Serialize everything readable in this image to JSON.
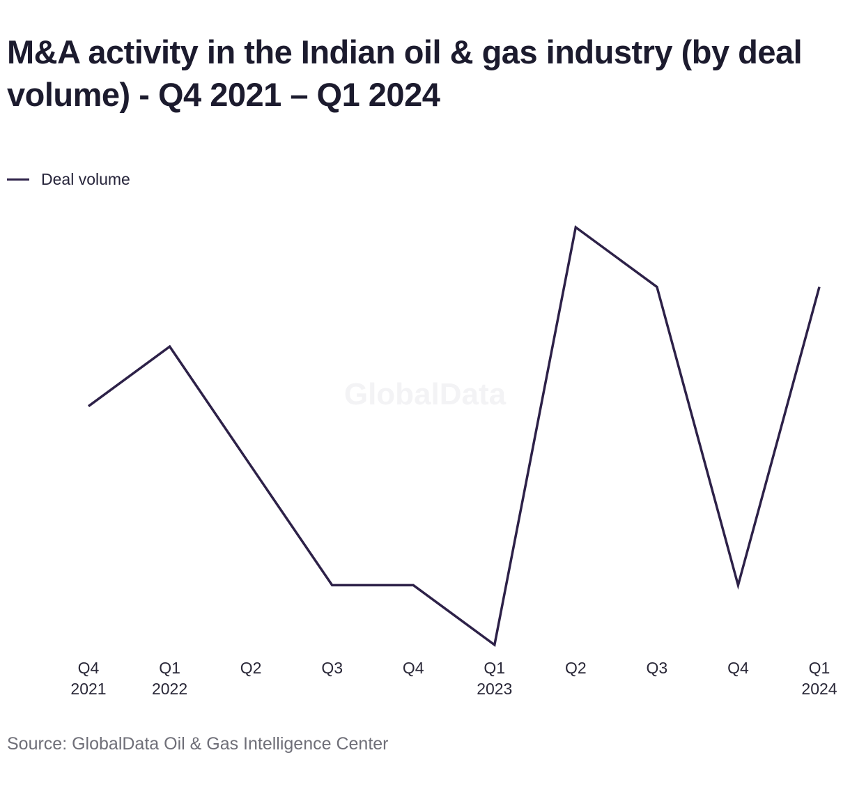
{
  "title": "M&A activity in the Indian oil & gas industry (by deal volume) - Q4 2021 – Q1 2024",
  "watermark": "GlobalData",
  "source": "Source: GlobalData Oil & Gas Intelligence Center",
  "colors": {
    "line": "#2d2148",
    "text": "#1c1b2e",
    "source": "#6f6f78"
  },
  "chart_data": {
    "type": "line",
    "title": "M&A activity in the Indian oil & gas industry (by deal volume) - Q4 2021 – Q1 2024",
    "xlabel": "",
    "ylabel": "",
    "grid": false,
    "y_axis_labels_shown": false,
    "legend_placement": "top-left",
    "categories": [
      [
        "Q4",
        "2021"
      ],
      [
        "Q1",
        "2022"
      ],
      [
        "Q2"
      ],
      [
        "Q3"
      ],
      [
        "Q4"
      ],
      [
        "Q1",
        "2023"
      ],
      [
        "Q2"
      ],
      [
        "Q3"
      ],
      [
        "Q4"
      ],
      [
        "Q1",
        "2024"
      ]
    ],
    "series": [
      {
        "name": "Deal volume",
        "values": [
          11,
          12,
          10,
          8,
          8,
          7,
          14,
          13,
          8,
          13
        ]
      }
    ]
  }
}
